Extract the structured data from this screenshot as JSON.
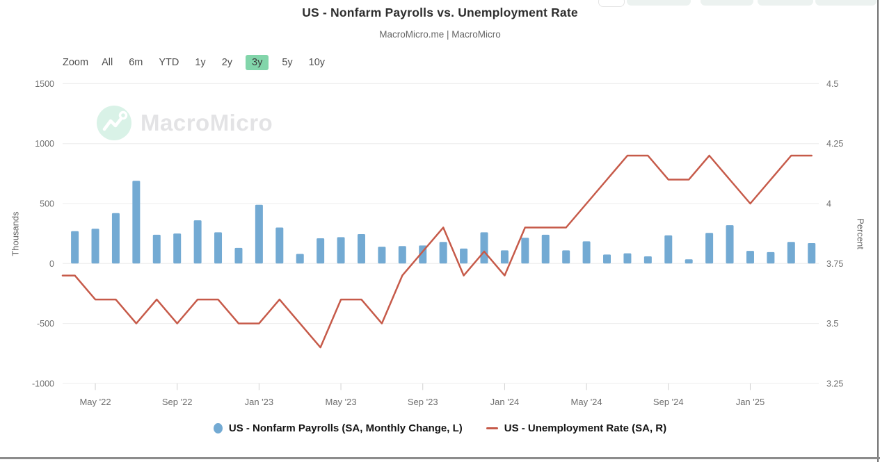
{
  "header": {
    "title": "US - Nonfarm Payrolls vs. Unemployment Rate",
    "subtitle": "MacroMicro.me | MacroMicro"
  },
  "toolbar": {
    "zoom_label": "Zoom",
    "ranges": [
      "All",
      "6m",
      "YTD",
      "1y",
      "2y",
      "3y",
      "5y",
      "10y"
    ],
    "active_range": "3y"
  },
  "watermark": {
    "text": "MacroMicro"
  },
  "colors": {
    "bar": "#73aad3",
    "line": "#c65a49",
    "active_range_bg": "#82d5aa",
    "grid": "#ececec",
    "axis_text": "#6e6e6e"
  },
  "chart_data": {
    "type": "combo",
    "title": "US - Nonfarm Payrolls vs. Unemployment Rate",
    "subtitle": "MacroMicro.me | MacroMicro",
    "x": [
      "Apr '22",
      "May '22",
      "Jun '22",
      "Jul '22",
      "Aug '22",
      "Sep '22",
      "Oct '22",
      "Nov '22",
      "Dec '22",
      "Jan '23",
      "Feb '23",
      "Mar '23",
      "Apr '23",
      "May '23",
      "Jun '23",
      "Jul '23",
      "Aug '23",
      "Sep '23",
      "Oct '23",
      "Nov '23",
      "Dec '23",
      "Jan '24",
      "Feb '24",
      "Mar '24",
      "Apr '24",
      "May '24",
      "Jun '24",
      "Jul '24",
      "Aug '24",
      "Sep '24",
      "Oct '24",
      "Nov '24",
      "Dec '24",
      "Jan '25",
      "Feb '25",
      "Mar '25",
      "Apr '25"
    ],
    "x_tick_labels": [
      {
        "index": 1,
        "label": "May '22"
      },
      {
        "index": 5,
        "label": "Sep '22"
      },
      {
        "index": 9,
        "label": "Jan '23"
      },
      {
        "index": 13,
        "label": "May '23"
      },
      {
        "index": 17,
        "label": "Sep '23"
      },
      {
        "index": 21,
        "label": "Jan '24"
      },
      {
        "index": 25,
        "label": "May '24"
      },
      {
        "index": 29,
        "label": "Sep '24"
      },
      {
        "index": 33,
        "label": "Jan '25"
      }
    ],
    "left_axis": {
      "title": "Thousands",
      "min": -1000,
      "max": 1500,
      "ticks": [
        1500,
        1000,
        500,
        0,
        -500,
        -1000
      ]
    },
    "right_axis": {
      "title": "Percent",
      "min": 3.25,
      "max": 4.5,
      "ticks": [
        4.5,
        4.25,
        4,
        3.75,
        3.5,
        3.25
      ]
    },
    "grid": "horizontal",
    "legend_position": "bottom",
    "series": [
      {
        "name": "US - Nonfarm Payrolls (SA, Monthly Change, L)",
        "type": "bar",
        "axis": "left",
        "color": "#73aad3",
        "marker": "circle",
        "values": [
          270,
          290,
          420,
          690,
          240,
          250,
          360,
          260,
          130,
          490,
          300,
          80,
          210,
          220,
          245,
          140,
          145,
          150,
          180,
          125,
          260,
          110,
          215,
          240,
          110,
          185,
          75,
          85,
          60,
          235,
          35,
          255,
          320,
          105,
          95,
          180,
          170
        ]
      },
      {
        "name": "US - Unemployment Rate (SA, R)",
        "type": "line",
        "axis": "right",
        "color": "#c65a49",
        "marker": "dash",
        "values": [
          3.7,
          3.6,
          3.6,
          3.5,
          3.6,
          3.5,
          3.6,
          3.6,
          3.5,
          3.5,
          3.6,
          3.5,
          3.4,
          3.6,
          3.6,
          3.5,
          3.7,
          3.8,
          3.9,
          3.7,
          3.8,
          3.7,
          3.9,
          3.9,
          3.9,
          4.0,
          4.1,
          4.2,
          4.2,
          4.1,
          4.1,
          4.2,
          4.1,
          4.0,
          4.1,
          4.2,
          4.2
        ]
      }
    ]
  }
}
